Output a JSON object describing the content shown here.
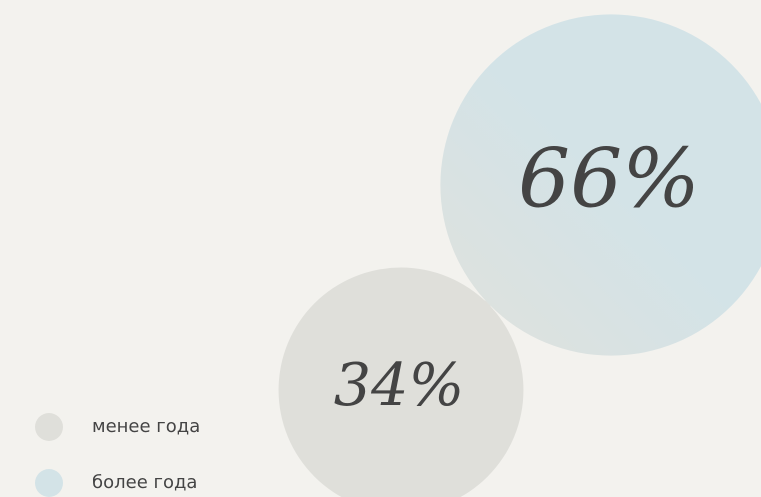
{
  "chart_data": {
    "type": "bubble",
    "categories": [
      "менее года",
      "более года"
    ],
    "values": [
      34,
      66
    ],
    "value_labels": [
      "34%",
      "66%"
    ],
    "colors": [
      "#dfdfda",
      "#d3e3e7"
    ]
  }
}
